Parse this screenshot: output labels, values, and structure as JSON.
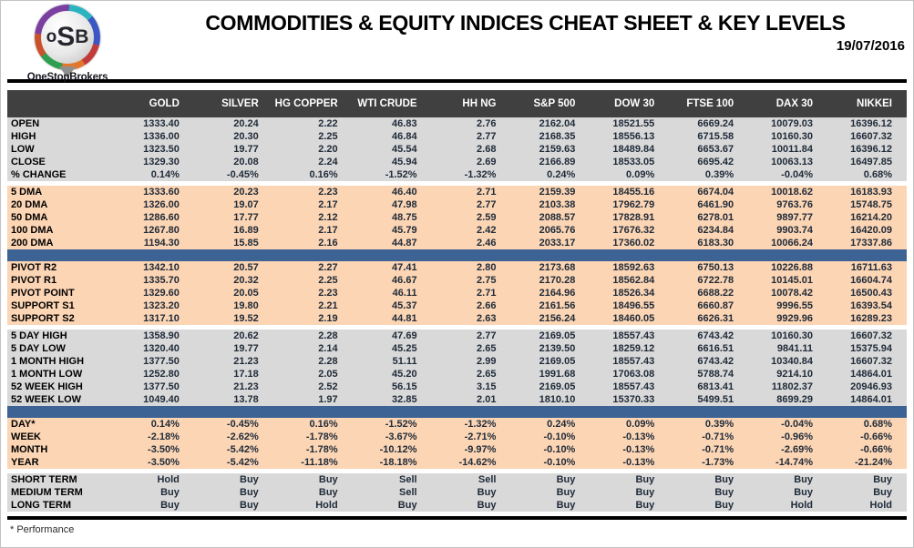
{
  "header": {
    "title": "COMMODITIES & EQUITY INDICES CHEAT SHEET & KEY LEVELS",
    "date": "19/07/2016",
    "logo": {
      "letters": [
        "o",
        "S",
        "B"
      ],
      "name": "OneStopBrokers"
    }
  },
  "table": {
    "columns": [
      "GOLD",
      "SILVER",
      "HG COPPER",
      "WTI CRUDE",
      "HH NG",
      "S&P 500",
      "DOW 30",
      "FTSE 100",
      "DAX 30",
      "NIKKEI"
    ],
    "sections": [
      {
        "id": "ohlc",
        "style": "gray",
        "type": "numeric",
        "divider_before": "none",
        "rows": [
          {
            "label": "OPEN",
            "values": [
              "1333.40",
              "20.24",
              "2.22",
              "46.83",
              "2.76",
              "2162.04",
              "18521.55",
              "6669.24",
              "10079.03",
              "16396.12"
            ]
          },
          {
            "label": "HIGH",
            "values": [
              "1336.00",
              "20.30",
              "2.25",
              "46.84",
              "2.77",
              "2168.35",
              "18556.13",
              "6715.58",
              "10160.30",
              "16607.32"
            ]
          },
          {
            "label": "LOW",
            "values": [
              "1323.50",
              "19.77",
              "2.20",
              "45.54",
              "2.68",
              "2159.63",
              "18489.84",
              "6653.67",
              "10011.84",
              "16396.12"
            ]
          },
          {
            "label": "CLOSE",
            "values": [
              "1329.30",
              "20.08",
              "2.24",
              "45.94",
              "2.69",
              "2166.89",
              "18533.05",
              "6695.42",
              "10063.13",
              "16497.85"
            ]
          },
          {
            "label": "% CHANGE",
            "values": [
              "0.14%",
              "-0.45%",
              "0.16%",
              "-1.52%",
              "-1.32%",
              "0.24%",
              "0.09%",
              "0.39%",
              "-0.04%",
              "0.68%"
            ]
          }
        ]
      },
      {
        "id": "moving-averages",
        "style": "peach",
        "type": "numeric",
        "divider_before": "gap",
        "rows": [
          {
            "label": "5 DMA",
            "values": [
              "1333.60",
              "20.23",
              "2.23",
              "46.40",
              "2.71",
              "2159.39",
              "18455.16",
              "6674.04",
              "10018.62",
              "16183.93"
            ]
          },
          {
            "label": "20 DMA",
            "values": [
              "1326.00",
              "19.07",
              "2.17",
              "47.98",
              "2.77",
              "2103.38",
              "17962.79",
              "6461.90",
              "9763.76",
              "15748.75"
            ]
          },
          {
            "label": "50 DMA",
            "values": [
              "1286.60",
              "17.77",
              "2.12",
              "48.75",
              "2.59",
              "2088.57",
              "17828.91",
              "6278.01",
              "9897.77",
              "16214.20"
            ]
          },
          {
            "label": "100 DMA",
            "values": [
              "1267.80",
              "16.89",
              "2.17",
              "45.79",
              "2.42",
              "2065.76",
              "17676.32",
              "6234.84",
              "9903.74",
              "16420.09"
            ]
          },
          {
            "label": "200 DMA",
            "values": [
              "1194.30",
              "15.85",
              "2.16",
              "44.87",
              "2.46",
              "2033.17",
              "17360.02",
              "6183.30",
              "10066.24",
              "17337.86"
            ]
          }
        ]
      },
      {
        "id": "pivots",
        "style": "peach",
        "type": "numeric",
        "divider_before": "bar",
        "rows": [
          {
            "label": "PIVOT R2",
            "label_color": "green",
            "values": [
              "1342.10",
              "20.57",
              "2.27",
              "47.41",
              "2.80",
              "2173.68",
              "18592.63",
              "6750.13",
              "10226.88",
              "16711.63"
            ]
          },
          {
            "label": "PIVOT R1",
            "label_color": "green",
            "values": [
              "1335.70",
              "20.32",
              "2.25",
              "46.67",
              "2.75",
              "2170.28",
              "18562.84",
              "6722.78",
              "10145.01",
              "16604.74"
            ]
          },
          {
            "label": "PIVOT POINT",
            "label_color": "blue",
            "values": [
              "1329.60",
              "20.05",
              "2.23",
              "46.11",
              "2.71",
              "2164.96",
              "18526.34",
              "6688.22",
              "10078.42",
              "16500.43"
            ]
          },
          {
            "label": "SUPPORT S1",
            "label_color": "red",
            "values": [
              "1323.20",
              "19.80",
              "2.21",
              "45.37",
              "2.66",
              "2161.56",
              "18496.55",
              "6660.87",
              "9996.55",
              "16393.54"
            ]
          },
          {
            "label": "SUPPORT S2",
            "label_color": "red",
            "values": [
              "1317.10",
              "19.52",
              "2.19",
              "44.81",
              "2.63",
              "2156.24",
              "18460.05",
              "6626.31",
              "9929.96",
              "16289.23"
            ]
          }
        ]
      },
      {
        "id": "ranges",
        "style": "gray",
        "type": "numeric",
        "divider_before": "gap",
        "rows": [
          {
            "label": "5 DAY HIGH",
            "values": [
              "1358.90",
              "20.62",
              "2.28",
              "47.69",
              "2.77",
              "2169.05",
              "18557.43",
              "6743.42",
              "10160.30",
              "16607.32"
            ]
          },
          {
            "label": "5 DAY LOW",
            "values": [
              "1320.40",
              "19.77",
              "2.14",
              "45.25",
              "2.65",
              "2139.50",
              "18259.12",
              "6616.51",
              "9841.11",
              "15375.94"
            ]
          },
          {
            "label": "1 MONTH HIGH",
            "values": [
              "1377.50",
              "21.23",
              "2.28",
              "51.11",
              "2.99",
              "2169.05",
              "18557.43",
              "6743.42",
              "10340.84",
              "16607.32"
            ]
          },
          {
            "label": "1 MONTH LOW",
            "values": [
              "1252.80",
              "17.18",
              "2.05",
              "45.20",
              "2.65",
              "1991.68",
              "17063.08",
              "5788.74",
              "9214.10",
              "14864.01"
            ]
          },
          {
            "label": "52 WEEK HIGH",
            "values": [
              "1377.50",
              "21.23",
              "2.52",
              "56.15",
              "3.15",
              "2169.05",
              "18557.43",
              "6813.41",
              "11802.37",
              "20946.93"
            ]
          },
          {
            "label": "52 WEEK LOW",
            "values": [
              "1049.40",
              "13.78",
              "1.97",
              "32.85",
              "2.01",
              "1810.10",
              "15370.33",
              "5499.51",
              "8699.29",
              "14864.01"
            ]
          }
        ]
      },
      {
        "id": "performance",
        "style": "peach",
        "type": "numeric",
        "divider_before": "bar",
        "rows": [
          {
            "label": "DAY*",
            "values": [
              "0.14%",
              "-0.45%",
              "0.16%",
              "-1.52%",
              "-1.32%",
              "0.24%",
              "0.09%",
              "0.39%",
              "-0.04%",
              "0.68%"
            ]
          },
          {
            "label": "WEEK",
            "values": [
              "-2.18%",
              "-2.62%",
              "-1.78%",
              "-3.67%",
              "-2.71%",
              "-0.10%",
              "-0.13%",
              "-0.71%",
              "-0.96%",
              "-0.66%"
            ]
          },
          {
            "label": "MONTH",
            "values": [
              "-3.50%",
              "-5.42%",
              "-1.78%",
              "-10.12%",
              "-9.97%",
              "-0.10%",
              "-0.13%",
              "-0.71%",
              "-2.69%",
              "-0.66%"
            ]
          },
          {
            "label": "YEAR",
            "values": [
              "-3.50%",
              "-5.42%",
              "-11.18%",
              "-18.18%",
              "-14.62%",
              "-0.10%",
              "-0.13%",
              "-1.73%",
              "-14.74%",
              "-21.24%"
            ]
          }
        ]
      },
      {
        "id": "signals",
        "style": "gray",
        "type": "signal",
        "divider_before": "gap",
        "rows": [
          {
            "label": "SHORT TERM",
            "values": [
              "Hold",
              "Buy",
              "Buy",
              "Sell",
              "Sell",
              "Buy",
              "Buy",
              "Buy",
              "Buy",
              "Buy"
            ]
          },
          {
            "label": "MEDIUM TERM",
            "values": [
              "Buy",
              "Buy",
              "Buy",
              "Sell",
              "Buy",
              "Buy",
              "Buy",
              "Buy",
              "Buy",
              "Buy"
            ]
          },
          {
            "label": "LONG TERM",
            "values": [
              "Buy",
              "Buy",
              "Hold",
              "Buy",
              "Buy",
              "Buy",
              "Buy",
              "Buy",
              "Hold",
              "Hold"
            ]
          }
        ]
      }
    ]
  },
  "footer": {
    "note": "* Performance"
  },
  "colors": {
    "header_bg": "#404040",
    "section_gray": "#d9d9d9",
    "section_peach": "#fcd5b4",
    "divider_blue": "#3c6394",
    "buy_green": "#00b050",
    "sell_red": "#ff0000",
    "hold_blue": "#2057a7"
  }
}
